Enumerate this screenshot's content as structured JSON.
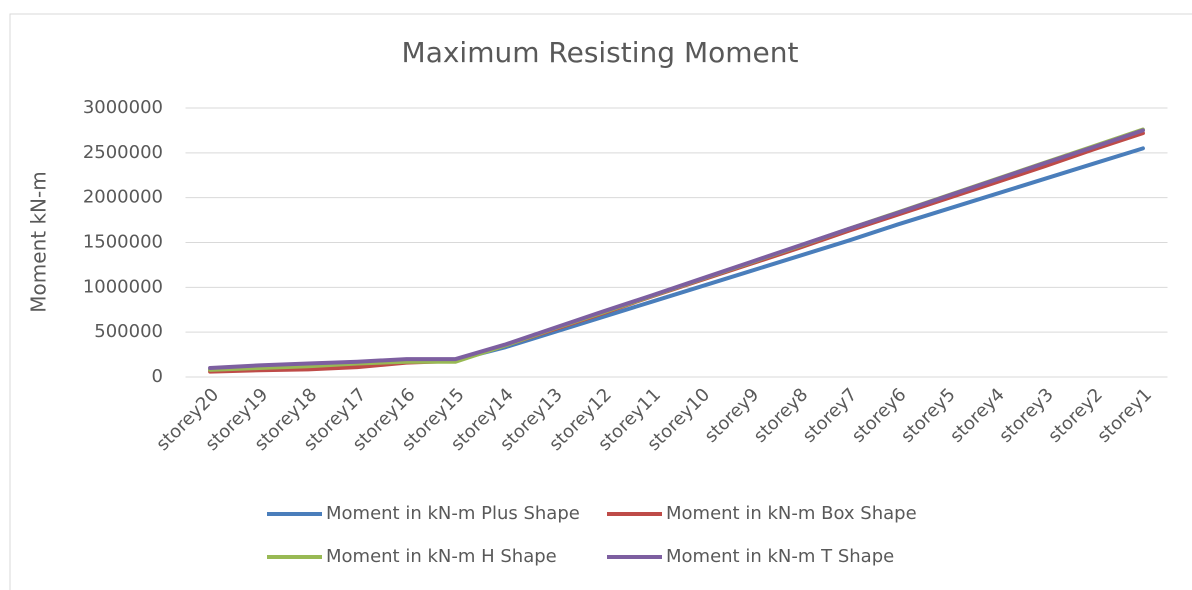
{
  "chart_data": {
    "type": "line",
    "title": "Maximum Resisting Moment",
    "y_label": "Moment kN-m",
    "categories": [
      "storey20",
      "storey19",
      "storey18",
      "storey17",
      "storey16",
      "storey15",
      "storey14",
      "storey13",
      "storey12",
      "storey11",
      "storey10",
      "storey9",
      "storey8",
      "storey7",
      "storey6",
      "storey5",
      "storey4",
      "storey3",
      "storey2",
      "storey1"
    ],
    "series": [
      {
        "name": "Moment in kN-m Plus Shape",
        "color": "#4a7ebb",
        "values": [
          80000,
          100000,
          120000,
          150000,
          180000,
          190000,
          330000,
          500000,
          670000,
          840000,
          1010000,
          1180000,
          1350000,
          1520000,
          1700000,
          1870000,
          2040000,
          2210000,
          2380000,
          2550000
        ]
      },
      {
        "name": "Moment in kN-m Box Shape",
        "color": "#be4b48",
        "values": [
          60000,
          75000,
          85000,
          110000,
          160000,
          180000,
          350000,
          530000,
          710000,
          900000,
          1080000,
          1260000,
          1440000,
          1630000,
          1810000,
          1990000,
          2170000,
          2350000,
          2540000,
          2720000
        ]
      },
      {
        "name": "Moment in kN-m H Shape",
        "color": "#98b954",
        "values": [
          80000,
          100000,
          120000,
          150000,
          170000,
          170000,
          350000,
          540000,
          720000,
          905000,
          1090000,
          1275000,
          1460000,
          1650000,
          1835000,
          2020000,
          2205000,
          2390000,
          2575000,
          2760000
        ]
      },
      {
        "name": "Moment in kN-m T Shape",
        "color": "#7d5fa0",
        "values": [
          100000,
          130000,
          150000,
          170000,
          200000,
          200000,
          360000,
          545000,
          730000,
          910000,
          1095000,
          1280000,
          1465000,
          1650000,
          1830000,
          2015000,
          2200000,
          2385000,
          2565000,
          2750000
        ]
      }
    ],
    "ylim": [
      0,
      3000000
    ],
    "yticks": [
      0,
      500000,
      1000000,
      1500000,
      2000000,
      2500000,
      3000000
    ],
    "grid": true,
    "legend": "bottom"
  }
}
